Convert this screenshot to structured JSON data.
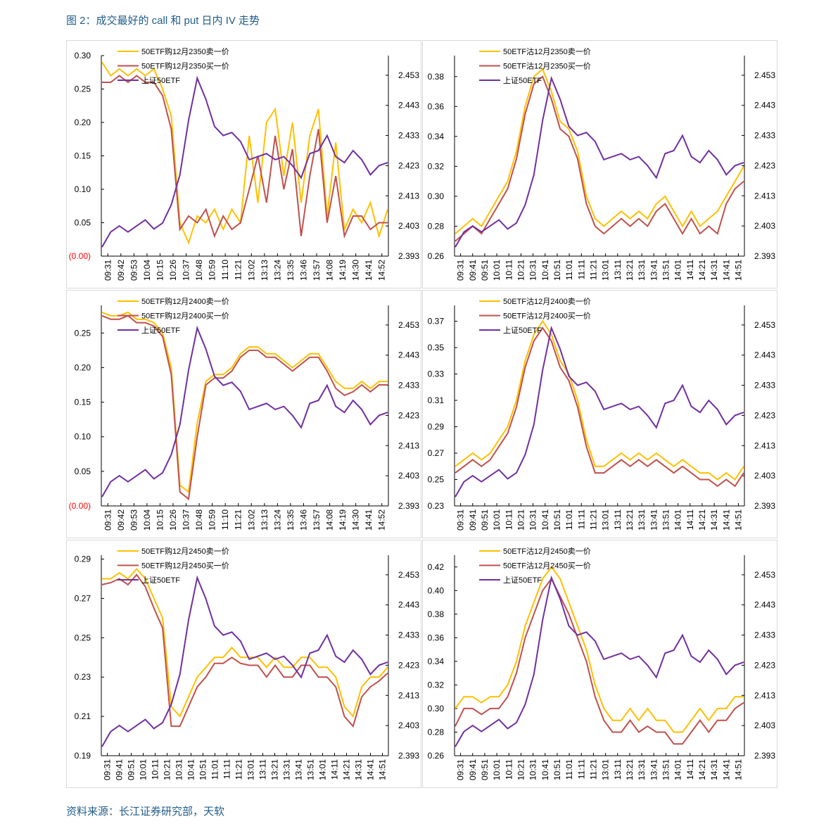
{
  "title": "图 2：成交最好的 call 和 put 日内 IV 走势",
  "source": "资料来源：长江证券研究部，天软",
  "colors": {
    "sell": "#ffc000",
    "buy": "#c0504d",
    "etf": "#7030a0",
    "zero_label": "#ff0000"
  },
  "etf_series": [
    2.396,
    2.401,
    2.403,
    2.401,
    2.403,
    2.405,
    2.402,
    2.404,
    2.41,
    2.42,
    2.438,
    2.452,
    2.445,
    2.436,
    2.433,
    2.434,
    2.431,
    2.425,
    2.426,
    2.427,
    2.425,
    2.426,
    2.423,
    2.419,
    2.427,
    2.428,
    2.433,
    2.426,
    2.424,
    2.428,
    2.425,
    2.42,
    2.423,
    2.424
  ],
  "chart_data": [
    {
      "type": "line",
      "legend": [
        "50ETF购12月2350卖一价",
        "50ETF购12月2350买一价",
        "上证50ETF"
      ],
      "ylim": [
        0,
        0.3
      ],
      "yticks": [
        0,
        0.05,
        0.1,
        0.15,
        0.2,
        0.25,
        0.3
      ],
      "ytick_labels": [
        "(0.00)",
        "0.05",
        "0.10",
        "0.15",
        "0.20",
        "0.25",
        "0.30"
      ],
      "y2lim": [
        2.393,
        2.4595
      ],
      "y2ticks": [
        "2.393",
        "2.403",
        "2.413",
        "2.423",
        "2.433",
        "2.443",
        "2.453"
      ],
      "xticks": [
        "09:31",
        "09:42",
        "09:53",
        "10:04",
        "10:15",
        "10:26",
        "10:37",
        "10:48",
        "10:59",
        "11:10",
        "11:21",
        "13:02",
        "13:13",
        "13:24",
        "13:35",
        "13:46",
        "13:57",
        "14:08",
        "14:19",
        "14:30",
        "14:41",
        "14:52"
      ],
      "sell": [
        0.29,
        0.27,
        0.28,
        0.27,
        0.28,
        0.27,
        0.28,
        0.25,
        0.21,
        0.05,
        0.02,
        0.06,
        0.05,
        0.07,
        0.04,
        0.07,
        0.05,
        0.18,
        0.08,
        0.2,
        0.22,
        0.12,
        0.2,
        0.08,
        0.18,
        0.22,
        0.06,
        0.17,
        0.04,
        0.07,
        0.05,
        0.08,
        0.03,
        0.07
      ],
      "buy": [
        0.26,
        0.26,
        0.27,
        0.26,
        0.27,
        0.26,
        0.26,
        0.24,
        0.19,
        0.04,
        0.06,
        0.05,
        0.07,
        0.03,
        0.06,
        0.04,
        0.05,
        0.1,
        0.15,
        0.08,
        0.18,
        0.1,
        0.16,
        0.03,
        0.12,
        0.19,
        0.05,
        0.12,
        0.03,
        0.06,
        0.06,
        0.04,
        0.05,
        0.05
      ]
    },
    {
      "type": "line",
      "legend": [
        "50ETF沽12月2350卖一价",
        "50ETF沽12月2350买一价",
        "上证50ETF"
      ],
      "ylim": [
        0.26,
        0.394
      ],
      "yticks": [
        0.26,
        0.28,
        0.3,
        0.32,
        0.34,
        0.36,
        0.38
      ],
      "ytick_labels": [
        "0.26",
        "0.28",
        "0.30",
        "0.32",
        "0.34",
        "0.36",
        "0.38"
      ],
      "y2lim": [
        2.393,
        2.4595
      ],
      "y2ticks": [
        "2.393",
        "2.403",
        "2.413",
        "2.423",
        "2.433",
        "2.443",
        "2.453"
      ],
      "xticks": [
        "09:31",
        "09:41",
        "09:51",
        "10:01",
        "10:11",
        "10:21",
        "10:31",
        "10:41",
        "10:51",
        "11:01",
        "11:11",
        "11:21",
        "13:01",
        "13:11",
        "13:21",
        "13:31",
        "13:41",
        "13:51",
        "14:01",
        "14:11",
        "14:21",
        "14:31",
        "14:41",
        "14:51"
      ],
      "sell": [
        0.275,
        0.28,
        0.285,
        0.28,
        0.29,
        0.3,
        0.31,
        0.33,
        0.36,
        0.38,
        0.385,
        0.37,
        0.35,
        0.345,
        0.33,
        0.3,
        0.285,
        0.28,
        0.285,
        0.29,
        0.285,
        0.29,
        0.285,
        0.295,
        0.3,
        0.29,
        0.28,
        0.29,
        0.28,
        0.285,
        0.29,
        0.3,
        0.31,
        0.32
      ],
      "buy": [
        0.27,
        0.275,
        0.28,
        0.275,
        0.285,
        0.295,
        0.305,
        0.325,
        0.355,
        0.375,
        0.38,
        0.365,
        0.345,
        0.34,
        0.325,
        0.295,
        0.28,
        0.275,
        0.28,
        0.285,
        0.28,
        0.285,
        0.28,
        0.29,
        0.295,
        0.285,
        0.275,
        0.285,
        0.275,
        0.28,
        0.275,
        0.295,
        0.305,
        0.31
      ]
    },
    {
      "type": "line",
      "legend": [
        "50ETF购12月2400卖一价",
        "50ETF购12月2400买一价",
        "上证50ETF"
      ],
      "ylim": [
        0,
        0.29
      ],
      "yticks": [
        0,
        0.05,
        0.1,
        0.15,
        0.2,
        0.25
      ],
      "ytick_labels": [
        "(0.00)",
        "0.05",
        "0.10",
        "0.15",
        "0.20",
        "0.25"
      ],
      "y2lim": [
        2.393,
        2.4595
      ],
      "y2ticks": [
        "2.393",
        "2.403",
        "2.413",
        "2.423",
        "2.433",
        "2.443",
        "2.453"
      ],
      "xticks": [
        "09:31",
        "09:42",
        "09:53",
        "10:04",
        "10:15",
        "10:26",
        "10:37",
        "10:48",
        "10:59",
        "11:10",
        "11:21",
        "13:02",
        "13:13",
        "13:24",
        "13:35",
        "13:46",
        "13:57",
        "14:08",
        "14:19",
        "14:30",
        "14:41",
        "14:52"
      ],
      "sell": [
        0.28,
        0.275,
        0.275,
        0.28,
        0.27,
        0.27,
        0.265,
        0.25,
        0.2,
        0.03,
        0.02,
        0.12,
        0.18,
        0.19,
        0.19,
        0.2,
        0.22,
        0.23,
        0.23,
        0.22,
        0.22,
        0.21,
        0.2,
        0.21,
        0.22,
        0.22,
        0.2,
        0.18,
        0.17,
        0.17,
        0.18,
        0.17,
        0.18,
        0.18
      ],
      "buy": [
        0.275,
        0.27,
        0.27,
        0.275,
        0.265,
        0.265,
        0.26,
        0.245,
        0.19,
        0.02,
        0.01,
        0.1,
        0.175,
        0.185,
        0.185,
        0.195,
        0.215,
        0.225,
        0.225,
        0.215,
        0.215,
        0.205,
        0.195,
        0.205,
        0.215,
        0.215,
        0.195,
        0.17,
        0.16,
        0.165,
        0.175,
        0.165,
        0.175,
        0.175
      ]
    },
    {
      "type": "line",
      "legend": [
        "50ETF沽12月2400卖一价",
        "50ETF沽12月2400买一价",
        "上证50ETF"
      ],
      "ylim": [
        0.23,
        0.382
      ],
      "yticks": [
        0.23,
        0.25,
        0.27,
        0.29,
        0.31,
        0.33,
        0.35,
        0.37
      ],
      "ytick_labels": [
        "0.23",
        "0.25",
        "0.27",
        "0.29",
        "0.31",
        "0.33",
        "0.35",
        "0.37"
      ],
      "y2lim": [
        2.393,
        2.4595
      ],
      "y2ticks": [
        "2.393",
        "2.403",
        "2.413",
        "2.423",
        "2.433",
        "2.443",
        "2.453"
      ],
      "xticks": [
        "09:31",
        "09:41",
        "09:51",
        "10:01",
        "10:11",
        "10:21",
        "10:31",
        "10:41",
        "10:51",
        "11:01",
        "11:11",
        "11:21",
        "13:01",
        "13:11",
        "13:21",
        "13:31",
        "13:41",
        "13:51",
        "14:01",
        "14:11",
        "14:21",
        "14:31",
        "14:41",
        "14:51"
      ],
      "sell": [
        0.26,
        0.265,
        0.27,
        0.265,
        0.27,
        0.28,
        0.29,
        0.31,
        0.34,
        0.36,
        0.37,
        0.36,
        0.34,
        0.33,
        0.31,
        0.28,
        0.26,
        0.26,
        0.265,
        0.27,
        0.265,
        0.27,
        0.265,
        0.27,
        0.265,
        0.26,
        0.265,
        0.26,
        0.255,
        0.255,
        0.25,
        0.255,
        0.25,
        0.26
      ],
      "buy": [
        0.255,
        0.26,
        0.265,
        0.26,
        0.265,
        0.275,
        0.285,
        0.305,
        0.335,
        0.355,
        0.365,
        0.355,
        0.335,
        0.325,
        0.305,
        0.275,
        0.255,
        0.255,
        0.26,
        0.265,
        0.26,
        0.265,
        0.26,
        0.265,
        0.26,
        0.255,
        0.26,
        0.255,
        0.25,
        0.25,
        0.245,
        0.25,
        0.245,
        0.255
      ]
    },
    {
      "type": "line",
      "legend": [
        "50ETF购12月2450卖一价",
        "50ETF购12月2450买一价",
        "上证50ETF"
      ],
      "ylim": [
        0.19,
        0.292
      ],
      "yticks": [
        0.19,
        0.21,
        0.23,
        0.25,
        0.27,
        0.29
      ],
      "ytick_labels": [
        "0.19",
        "0.21",
        "0.23",
        "0.25",
        "0.27",
        "0.29"
      ],
      "y2lim": [
        2.393,
        2.4595
      ],
      "y2ticks": [
        "2.393",
        "2.403",
        "2.413",
        "2.423",
        "2.433",
        "2.443",
        "2.453"
      ],
      "xticks": [
        "09:31",
        "09:41",
        "09:51",
        "10:01",
        "10:11",
        "10:21",
        "10:31",
        "10:41",
        "10:51",
        "11:01",
        "11:11",
        "11:21",
        "13:01",
        "13:11",
        "13:21",
        "13:31",
        "13:41",
        "13:51",
        "14:01",
        "14:11",
        "14:21",
        "14:31",
        "14:41",
        "14:51"
      ],
      "sell": [
        0.28,
        0.28,
        0.283,
        0.28,
        0.285,
        0.28,
        0.27,
        0.26,
        0.215,
        0.21,
        0.22,
        0.23,
        0.235,
        0.24,
        0.24,
        0.245,
        0.24,
        0.24,
        0.24,
        0.235,
        0.24,
        0.235,
        0.235,
        0.24,
        0.24,
        0.235,
        0.235,
        0.23,
        0.215,
        0.21,
        0.225,
        0.23,
        0.23,
        0.235
      ],
      "buy": [
        0.277,
        0.278,
        0.28,
        0.277,
        0.282,
        0.276,
        0.265,
        0.255,
        0.205,
        0.205,
        0.215,
        0.225,
        0.23,
        0.237,
        0.237,
        0.24,
        0.237,
        0.236,
        0.236,
        0.23,
        0.236,
        0.23,
        0.23,
        0.236,
        0.236,
        0.23,
        0.23,
        0.225,
        0.21,
        0.205,
        0.22,
        0.225,
        0.228,
        0.232
      ]
    },
    {
      "type": "line",
      "legend": [
        "50ETF沽12月2450卖一价",
        "50ETF沽12月2450买一价",
        "上证50ETF"
      ],
      "ylim": [
        0.26,
        0.43
      ],
      "yticks": [
        0.26,
        0.28,
        0.3,
        0.32,
        0.34,
        0.36,
        0.38,
        0.4,
        0.42
      ],
      "ytick_labels": [
        "0.26",
        "0.28",
        "0.30",
        "0.32",
        "0.34",
        "0.36",
        "0.38",
        "0.40",
        "0.42"
      ],
      "y2lim": [
        2.393,
        2.4595
      ],
      "y2ticks": [
        "2.393",
        "2.403",
        "2.413",
        "2.423",
        "2.433",
        "2.443",
        "2.453"
      ],
      "xticks": [
        "09:31",
        "09:41",
        "09:51",
        "10:01",
        "10:11",
        "10:21",
        "10:31",
        "10:41",
        "10:51",
        "11:01",
        "11:11",
        "11:21",
        "13:01",
        "13:11",
        "13:21",
        "13:31",
        "13:41",
        "13:51",
        "14:01",
        "14:11",
        "14:21",
        "14:31",
        "14:41",
        "14:51"
      ],
      "sell": [
        0.3,
        0.31,
        0.31,
        0.305,
        0.31,
        0.31,
        0.32,
        0.34,
        0.37,
        0.39,
        0.41,
        0.42,
        0.41,
        0.39,
        0.37,
        0.35,
        0.32,
        0.3,
        0.29,
        0.29,
        0.3,
        0.29,
        0.3,
        0.29,
        0.29,
        0.28,
        0.28,
        0.29,
        0.3,
        0.29,
        0.3,
        0.3,
        0.31,
        0.31
      ],
      "buy": [
        0.285,
        0.3,
        0.3,
        0.295,
        0.3,
        0.3,
        0.31,
        0.33,
        0.36,
        0.38,
        0.4,
        0.41,
        0.395,
        0.38,
        0.36,
        0.34,
        0.31,
        0.29,
        0.28,
        0.28,
        0.29,
        0.28,
        0.285,
        0.28,
        0.28,
        0.27,
        0.27,
        0.28,
        0.29,
        0.28,
        0.29,
        0.29,
        0.3,
        0.305
      ]
    }
  ]
}
